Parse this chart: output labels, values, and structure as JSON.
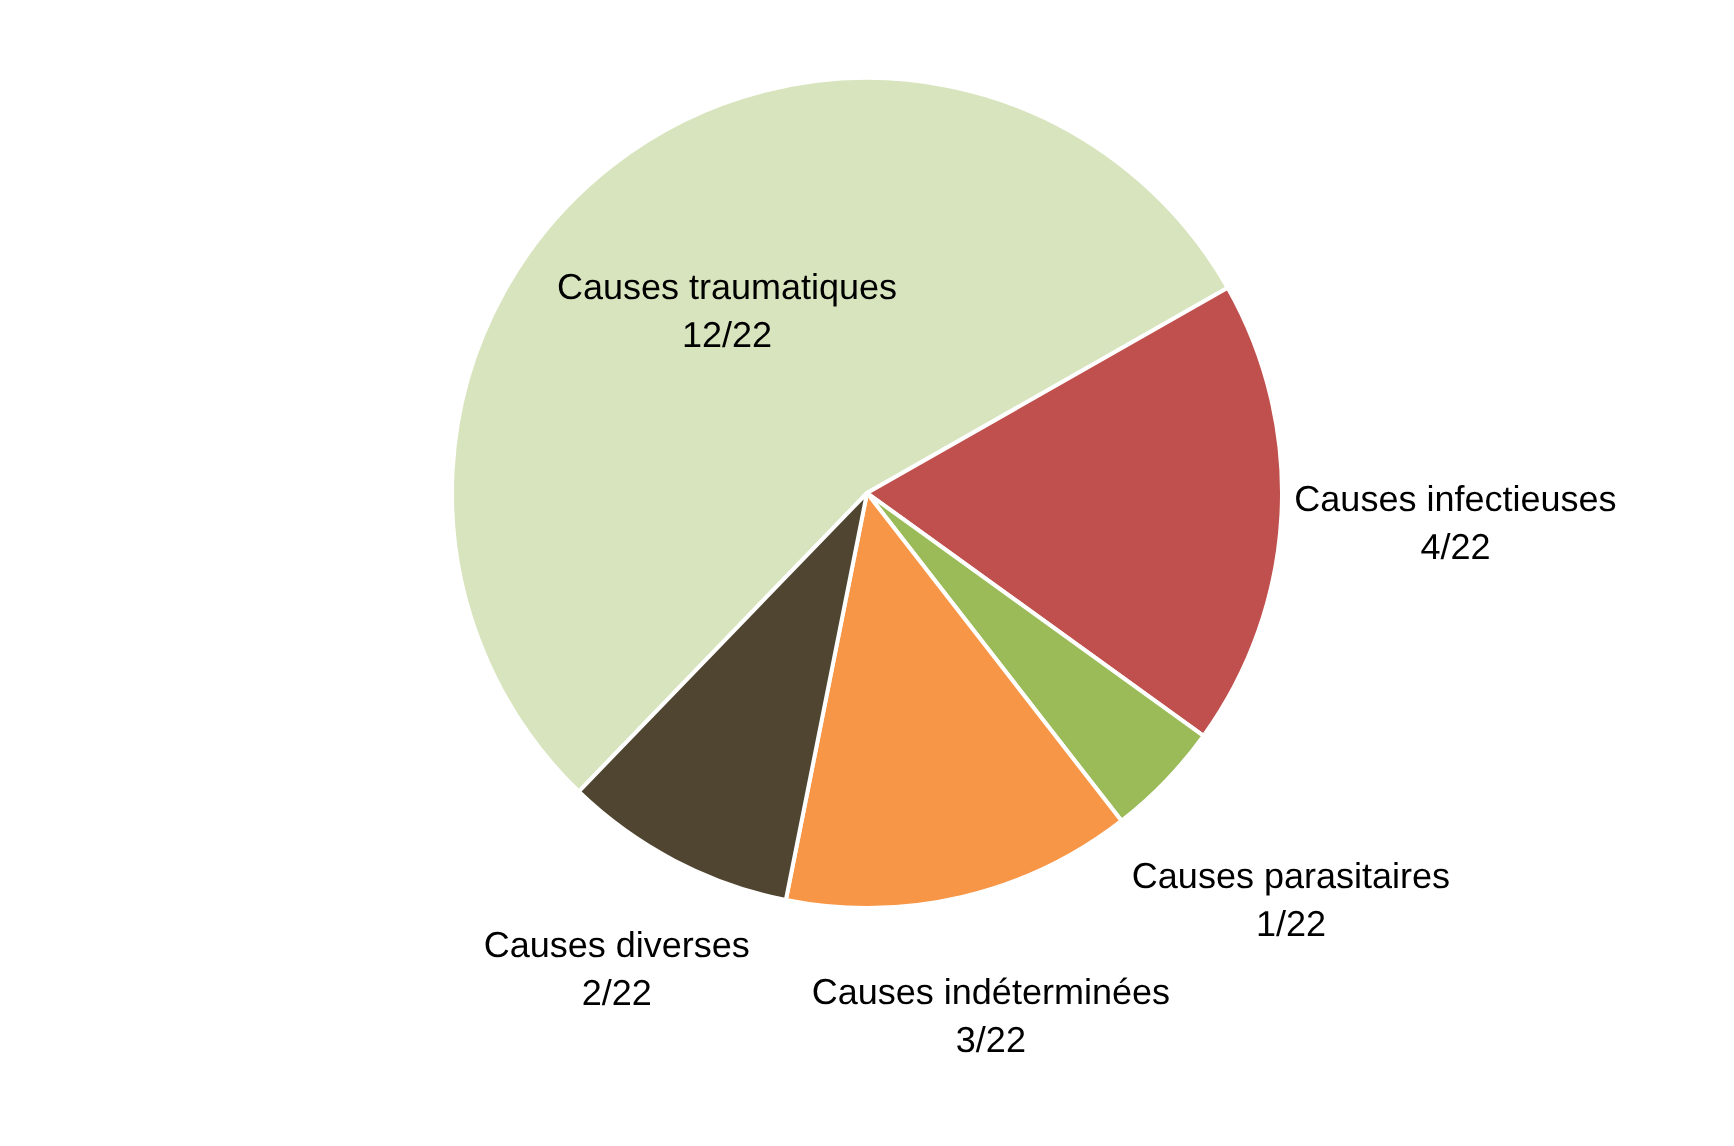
{
  "chart_data": {
    "type": "pie",
    "categories": [
      "Causes traumatiques",
      "Causes infectieuses",
      "Causes parasitaires",
      "Causes indéterminées",
      "Causes diverses"
    ],
    "values": [
      12,
      4,
      1,
      3,
      2
    ],
    "value_labels": [
      "12/22",
      "4/22",
      "1/22",
      "3/22",
      "2/22"
    ],
    "colors": [
      "#d7e4bd",
      "#c0504d",
      "#9bbb59",
      "#f79646",
      "#4f4530"
    ],
    "legend": false
  }
}
